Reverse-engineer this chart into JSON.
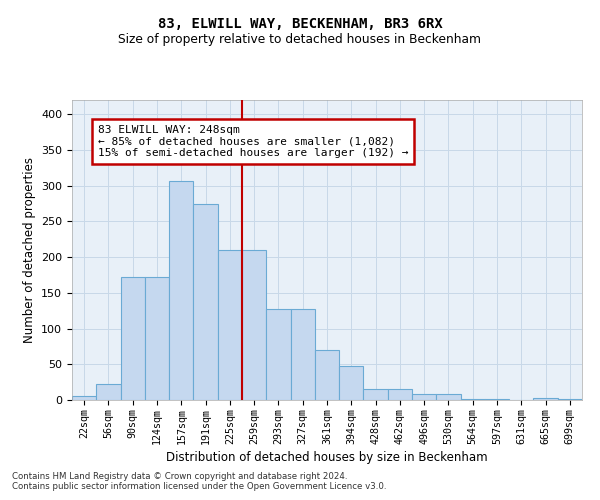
{
  "title1": "83, ELWILL WAY, BECKENHAM, BR3 6RX",
  "title2": "Size of property relative to detached houses in Beckenham",
  "xlabel": "Distribution of detached houses by size in Beckenham",
  "ylabel": "Number of detached properties",
  "bar_labels": [
    "22sqm",
    "56sqm",
    "90sqm",
    "124sqm",
    "157sqm",
    "191sqm",
    "225sqm",
    "259sqm",
    "293sqm",
    "327sqm",
    "361sqm",
    "394sqm",
    "428sqm",
    "462sqm",
    "496sqm",
    "530sqm",
    "564sqm",
    "597sqm",
    "631sqm",
    "665sqm",
    "699sqm"
  ],
  "bar_heights": [
    5,
    22,
    172,
    172,
    307,
    275,
    210,
    210,
    127,
    127,
    70,
    48,
    15,
    15,
    8,
    8,
    2,
    2,
    0,
    3,
    2
  ],
  "bar_color": "#c5d8ef",
  "bar_edge_color": "#6aaad4",
  "vline_color": "#c00000",
  "annotation_text": "83 ELWILL WAY: 248sqm\n← 85% of detached houses are smaller (1,082)\n15% of semi-detached houses are larger (192) →",
  "annotation_box_color": "#ffffff",
  "annotation_box_edge_color": "#c00000",
  "ylim": [
    0,
    420
  ],
  "yticks": [
    0,
    50,
    100,
    150,
    200,
    250,
    300,
    350,
    400
  ],
  "grid_color": "#c8d8e8",
  "background_color": "#e8f0f8",
  "footer1": "Contains HM Land Registry data © Crown copyright and database right 2024.",
  "footer2": "Contains public sector information licensed under the Open Government Licence v3.0."
}
